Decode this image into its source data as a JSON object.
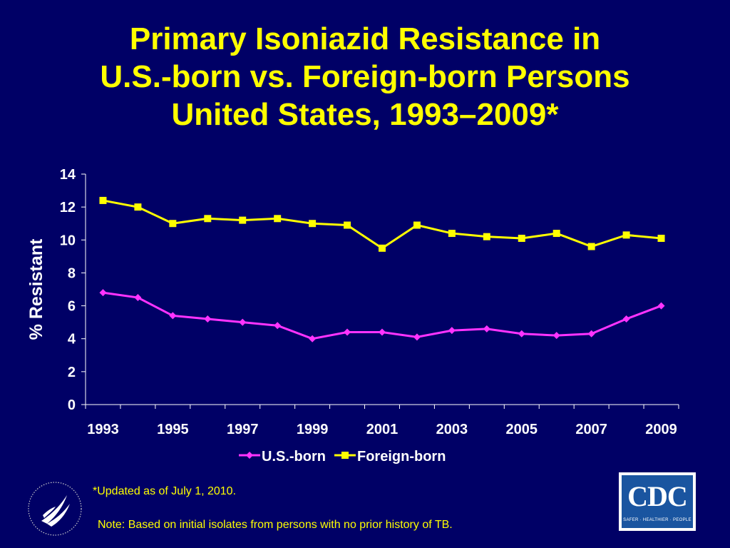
{
  "title_lines": [
    "Primary Isoniazid Resistance in",
    "U.S.-born vs. Foreign-born Persons",
    "United States, 1993–2009*"
  ],
  "footnote": "*Updated as of July 1, 2010.",
  "note": "Note: Based on initial isolates from persons with no prior history of TB.",
  "logos": {
    "cdc_letters": "CDC",
    "cdc_tagline": "SAFER · HEALTHIER · PEOPLE"
  },
  "colors": {
    "background": "#000066",
    "text": "#ffff00",
    "us_born": "#ff33ff",
    "foreign_born": "#ffff00",
    "axis": "#ffffff"
  },
  "chart_data": {
    "type": "line",
    "x": [
      1993,
      1994,
      1995,
      1996,
      1997,
      1998,
      1999,
      2000,
      2001,
      2002,
      2003,
      2004,
      2005,
      2006,
      2007,
      2008,
      2009
    ],
    "x_tick_labels": [
      "1993",
      "1995",
      "1997",
      "1999",
      "2001",
      "2003",
      "2005",
      "2007",
      "2009"
    ],
    "y_tick_labels": [
      "0",
      "2",
      "4",
      "6",
      "8",
      "10",
      "12",
      "14"
    ],
    "ylim": [
      0,
      14
    ],
    "ylabel": "% Resistant",
    "xlabel": "",
    "grid": false,
    "legend_position": "bottom",
    "series": [
      {
        "name": "U.S.-born",
        "marker": "diamond",
        "color": "#ff33ff",
        "values": [
          6.8,
          6.5,
          5.4,
          5.2,
          5.0,
          4.8,
          4.0,
          4.4,
          4.4,
          4.1,
          4.5,
          4.6,
          4.3,
          4.2,
          4.3,
          5.2,
          6.0
        ]
      },
      {
        "name": "Foreign-born",
        "marker": "square",
        "color": "#ffff00",
        "values": [
          12.4,
          12.0,
          11.0,
          11.3,
          11.2,
          11.3,
          11.0,
          10.9,
          9.5,
          10.9,
          10.4,
          10.2,
          10.1,
          10.4,
          9.6,
          10.3,
          10.1
        ]
      }
    ]
  }
}
